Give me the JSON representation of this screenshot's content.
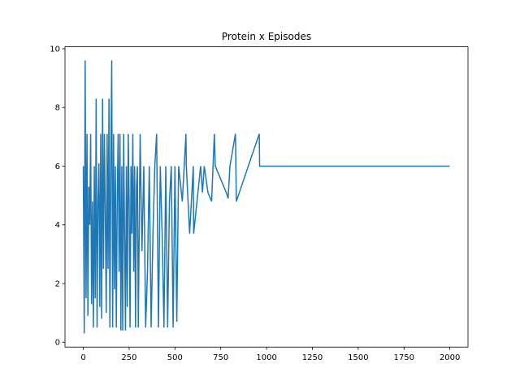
{
  "chart_data": {
    "type": "line",
    "title": "Protein x Episodes",
    "x": [
      0,
      5,
      10,
      15,
      20,
      25,
      30,
      35,
      40,
      45,
      50,
      55,
      60,
      65,
      70,
      75,
      80,
      85,
      90,
      95,
      100,
      105,
      110,
      115,
      120,
      125,
      130,
      135,
      140,
      145,
      150,
      155,
      160,
      165,
      170,
      175,
      180,
      185,
      190,
      195,
      200,
      205,
      210,
      215,
      220,
      225,
      230,
      235,
      240,
      245,
      250,
      255,
      260,
      265,
      270,
      275,
      280,
      285,
      290,
      295,
      300,
      310,
      320,
      330,
      340,
      350,
      360,
      370,
      380,
      390,
      400,
      410,
      420,
      430,
      440,
      450,
      460,
      470,
      480,
      490,
      500,
      510,
      520,
      540,
      560,
      562,
      580,
      600,
      602,
      640,
      650,
      660,
      680,
      700,
      715,
      720,
      780,
      790,
      800,
      830,
      835,
      900,
      960,
      962,
      1999
    ],
    "series": [
      {
        "color": "#1f77b4",
        "values": [
          6,
          0.3,
          9.6,
          1.5,
          7.1,
          0.9,
          5.3,
          4,
          7.1,
          1.3,
          4.8,
          0.5,
          6,
          1.5,
          8.3,
          0.5,
          4.8,
          6.1,
          1.2,
          7.1,
          0.8,
          8.3,
          2.5,
          7.1,
          4.5,
          1,
          7.1,
          2.5,
          8.3,
          0.5,
          6,
          9.6,
          0.5,
          7.1,
          1.8,
          6,
          0.5,
          4.8,
          7.1,
          2.4,
          7.1,
          0.4,
          6,
          0.4,
          7.1,
          3.7,
          0.4,
          6,
          1.2,
          7.1,
          4.8,
          0.5,
          6,
          3.7,
          7.1,
          2.4,
          6,
          0.5,
          5.3,
          6,
          0.5,
          7.1,
          3.1,
          6,
          0.5,
          2.4,
          6,
          0.5,
          3.7,
          6,
          7.1,
          0.5,
          6,
          3.7,
          0.5,
          6,
          0.5,
          4.8,
          6,
          0.5,
          6,
          0.7,
          6,
          4.8,
          7.1,
          6,
          3.7,
          6,
          3.7,
          6,
          5.1,
          6,
          5.1,
          4.8,
          7.1,
          6,
          5.1,
          4.9,
          6,
          7.1,
          4.8,
          6,
          7.1,
          6,
          6
        ]
      }
    ],
    "xlim": [
      -100,
      2099
    ],
    "ylim": [
      -0.165,
      10.065
    ],
    "xticks": [
      0,
      250,
      500,
      750,
      1000,
      1250,
      1500,
      1750,
      2000
    ],
    "yticks": [
      0,
      2,
      4,
      6,
      8,
      10
    ]
  }
}
